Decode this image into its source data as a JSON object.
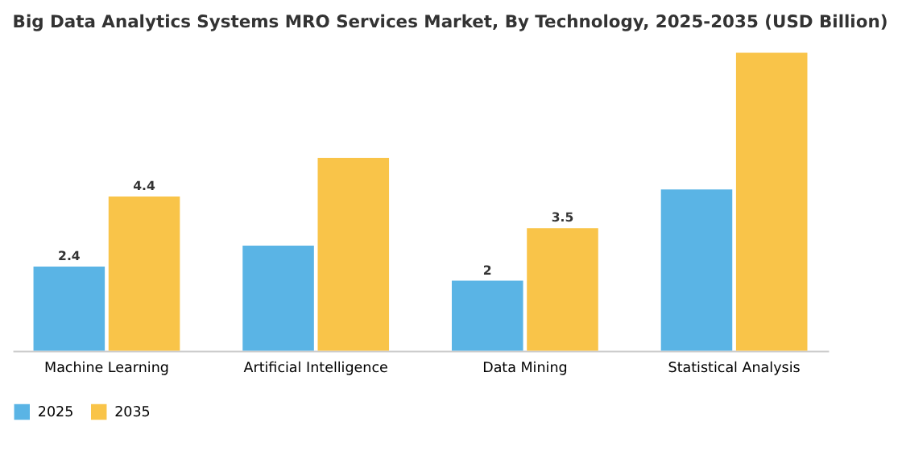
{
  "chart_data": {
    "type": "bar",
    "title": "Big Data Analytics Systems MRO Services Market, By Technology, 2025-2035 (USD Billion)",
    "categories": [
      "Machine Learning",
      "Artificial Intelligence",
      "Data Mining",
      "Statistical Analysis"
    ],
    "series": [
      {
        "name": "2025",
        "color": "#5ab4e5",
        "values": [
          2.4,
          3.0,
          2.0,
          4.6
        ],
        "value_labels": [
          "2.4",
          null,
          "2",
          null
        ]
      },
      {
        "name": "2035",
        "color": "#f9c449",
        "values": [
          4.4,
          5.5,
          3.5,
          8.5
        ],
        "value_labels": [
          "4.4",
          null,
          "3.5",
          null
        ]
      }
    ],
    "legend": "bottom",
    "grid": false
  }
}
